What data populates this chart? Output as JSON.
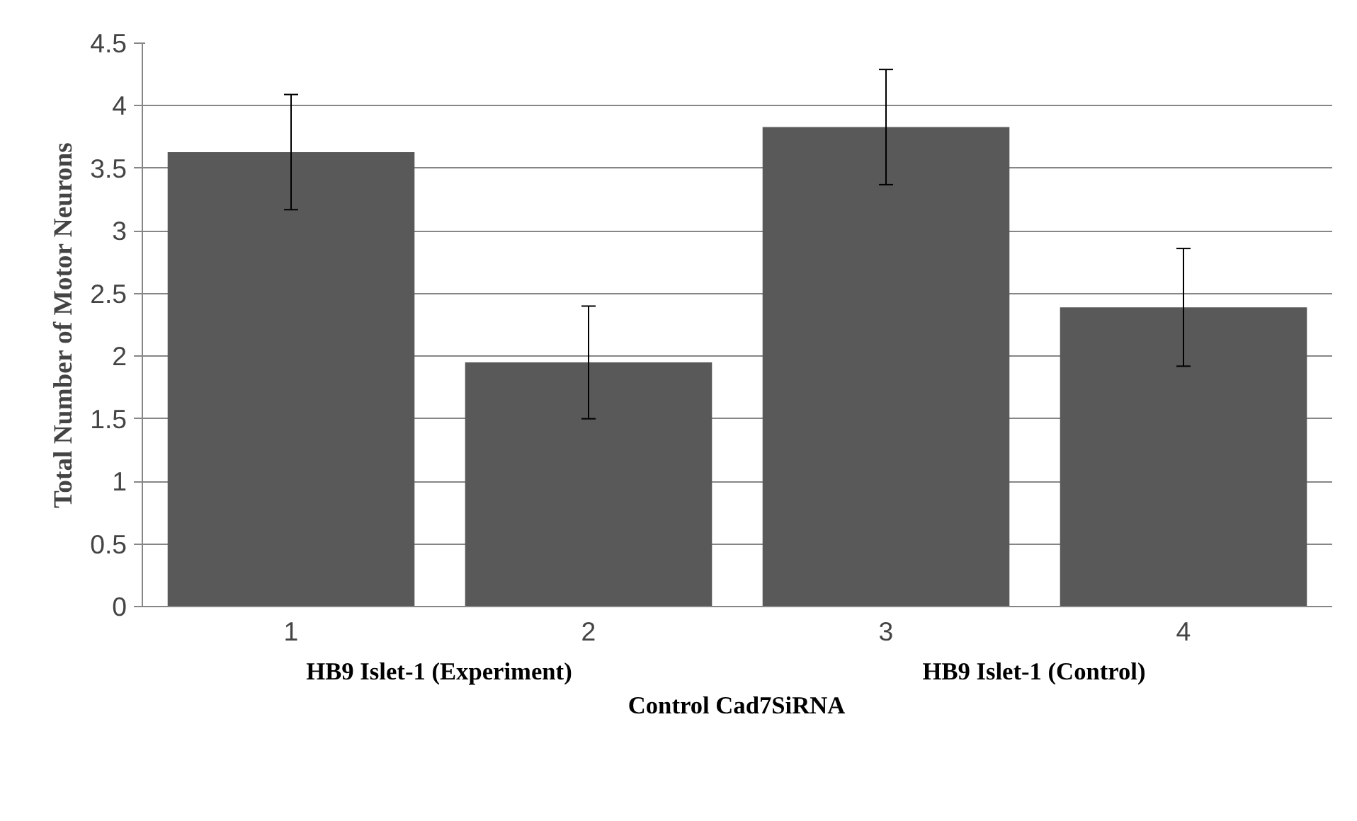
{
  "chart_data": {
    "type": "bar",
    "ylabel": "Total Number of Motor Neurons",
    "categories": [
      "1",
      "2",
      "3",
      "4"
    ],
    "values": [
      3.63,
      1.95,
      3.83,
      2.39
    ],
    "errors": [
      0.46,
      0.45,
      0.46,
      0.47
    ],
    "color": "#595959",
    "ylim": [
      0,
      4.5
    ],
    "yticks": [
      0,
      0.5,
      1,
      1.5,
      2,
      2.5,
      3,
      3.5,
      4,
      4.5
    ],
    "grid": "y",
    "annotations": [
      "HB9 Islet-1 (Experiment)",
      "HB9 Islet-1 (Control)",
      "Control Cad7SiRNA"
    ]
  }
}
